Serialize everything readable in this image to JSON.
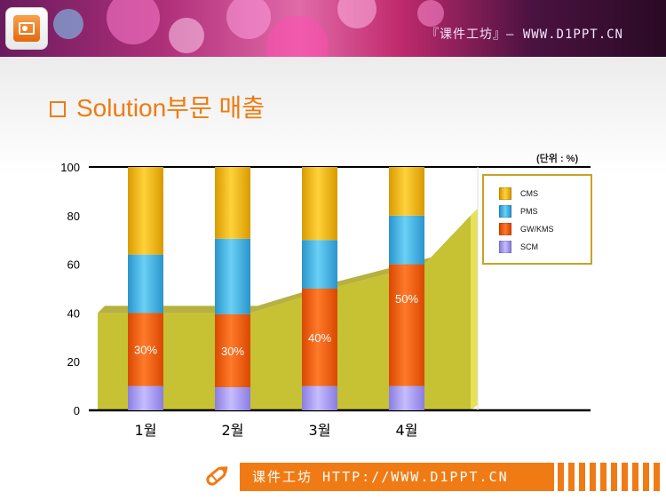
{
  "header": {
    "text": "『课件工坊』— WWW.D1PPT.CN"
  },
  "title": "Solution부문 매출",
  "unit_label": "(단위 : %)",
  "legend": [
    {
      "name": "CMS",
      "color": "#f4b800"
    },
    {
      "name": "PMS",
      "color": "#3fb3e6"
    },
    {
      "name": "GW/KMS",
      "color": "#f25a0c"
    },
    {
      "name": "SCM",
      "color": "#a99cf0"
    }
  ],
  "chart_data": {
    "type": "bar",
    "stacked": true,
    "categories": [
      "1월",
      "2월",
      "3월",
      "4월"
    ],
    "series": [
      {
        "name": "SCM",
        "values": [
          10,
          9.5,
          10,
          10
        ]
      },
      {
        "name": "GW/KMS",
        "values": [
          30,
          30,
          40,
          50
        ]
      },
      {
        "name": "PMS",
        "values": [
          24,
          31,
          20,
          20
        ]
      },
      {
        "name": "CMS",
        "values": [
          36,
          29.5,
          30,
          20
        ]
      }
    ],
    "area_background": [
      40,
      40,
      50,
      60
    ],
    "bar_labels": [
      "30%",
      "30%",
      "40%",
      "50%"
    ],
    "ylim": [
      0,
      100
    ],
    "yticks": [
      0,
      20,
      40,
      60,
      80,
      100
    ],
    "xlabel": "",
    "ylabel": "",
    "grid": false,
    "legend_position": "top-right"
  },
  "footer": {
    "text": "课件工坊 HTTP://WWW.D1PPT.CN"
  },
  "icons": {
    "app": "presentation-icon",
    "footer": "pencil-icon"
  }
}
